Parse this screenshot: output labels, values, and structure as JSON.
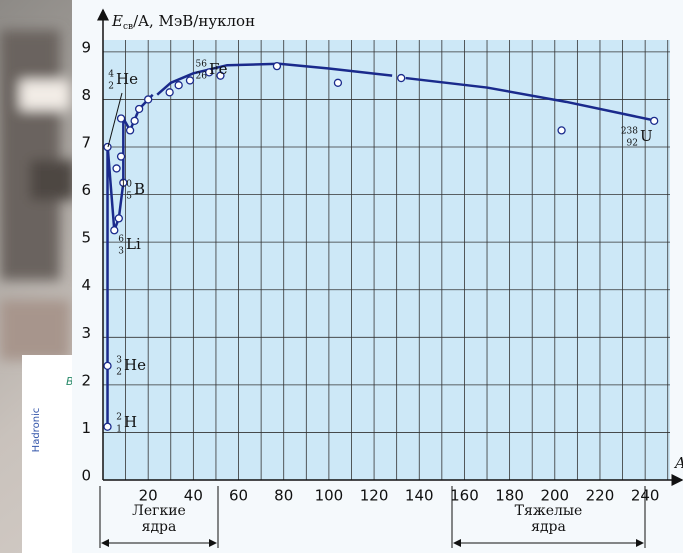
{
  "background": {
    "sidebar": "Hadronic",
    "label": "B",
    "letter": "t"
  },
  "chart_data": {
    "type": "scatter",
    "y_label": {
      "main": "E",
      "sub": "св",
      "rest": "/A, МэВ/нуклон"
    },
    "x_label": "A",
    "xlim": [
      0,
      251
    ],
    "ylim": [
      0,
      9.25
    ],
    "xticks": [
      20,
      40,
      60,
      80,
      100,
      120,
      140,
      160,
      180,
      200,
      220,
      240
    ],
    "xminorticks": [
      10,
      30,
      50,
      70,
      90,
      110,
      130,
      150,
      170,
      190,
      210,
      230,
      250
    ],
    "yticks": [
      0,
      1,
      2,
      3,
      4,
      5,
      6,
      7,
      8,
      9
    ],
    "grid": true,
    "plot_color": "#cde8f7",
    "series": [
      {
        "kind": "points",
        "color": "#1a2a8c",
        "x": [
          2,
          2,
          2,
          5,
          7,
          6,
          8,
          9,
          8,
          12,
          14,
          16,
          20,
          29.5,
          33.5,
          38.5,
          47,
          52,
          77,
          104,
          132,
          203,
          244
        ],
        "values": [
          1.12,
          2.4,
          7.0,
          5.25,
          5.5,
          6.55,
          6.8,
          6.25,
          7.6,
          7.35,
          7.55,
          7.8,
          8.0,
          8.15,
          8.3,
          8.4,
          8.57,
          8.5,
          8.7,
          8.35,
          8.45,
          7.35,
          7.55
        ]
      },
      {
        "kind": "curve",
        "color": "#1a2a8c",
        "x": [
          2,
          2,
          5,
          7,
          9,
          9,
          12,
          16,
          22,
          null,
          24,
          30,
          40,
          55,
          78,
          100,
          128,
          null,
          134,
          170,
          205,
          245
        ],
        "values": [
          1.12,
          7.05,
          5.25,
          5.5,
          6.25,
          7.6,
          7.35,
          7.8,
          8.1,
          null,
          8.1,
          8.35,
          8.55,
          8.72,
          8.75,
          8.65,
          8.5,
          null,
          8.45,
          8.25,
          7.95,
          7.55
        ]
      }
    ],
    "annotations": [
      {
        "mass": "4",
        "charge": "2",
        "symbol": "He"
      },
      {
        "mass": "10",
        "charge": "5",
        "symbol": "B"
      },
      {
        "mass": "6",
        "charge": "3",
        "symbol": "Li"
      },
      {
        "mass": "3",
        "charge": "2",
        "symbol": "He"
      },
      {
        "mass": "2",
        "charge": "1",
        "symbol": "H"
      },
      {
        "mass": "56",
        "charge": "26",
        "symbol": "Fe"
      },
      {
        "mass": "238",
        "charge": "92",
        "symbol": "U"
      }
    ],
    "regions": [
      {
        "lines": [
          "Легкие",
          "ядра"
        ]
      },
      {
        "lines": [
          "Тяжелые",
          "ядра"
        ]
      }
    ]
  }
}
